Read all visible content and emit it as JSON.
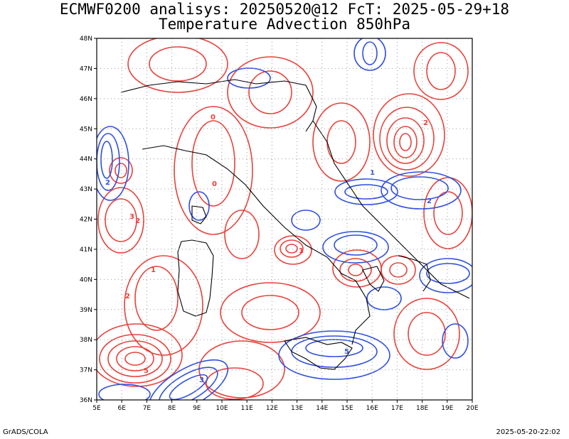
{
  "title": {
    "line1": "ECMWF0200 analisys: 20250520@12 FcT: 2025-05-29+18",
    "line2": "Temperature Advection 850hPa"
  },
  "map": {
    "lon_range": [
      5,
      20
    ],
    "lat_range": [
      36,
      48
    ],
    "x_ticks": [
      "5E",
      "6E",
      "7E",
      "8E",
      "9E",
      "10E",
      "11E",
      "12E",
      "13E",
      "14E",
      "15E",
      "16E",
      "17E",
      "18E",
      "19E",
      "20E"
    ],
    "y_ticks": [
      "36N",
      "37N",
      "38N",
      "39N",
      "40N",
      "41N",
      "42N",
      "43N",
      "44N",
      "45N",
      "46N",
      "47N",
      "48N"
    ],
    "grid": "dotted",
    "colors": {
      "warm": "#e8413a",
      "cold": "#2f4fe0",
      "coast": "#000000",
      "grid": "#9a9a9a"
    }
  },
  "footer": {
    "left": "GrADS/COLA",
    "right": "2025-05-20-22:02"
  }
}
